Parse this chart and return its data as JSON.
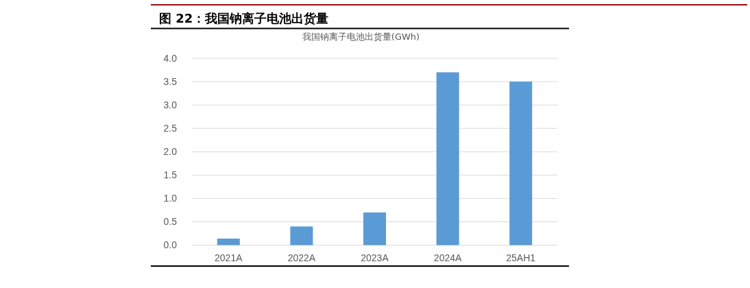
{
  "chart_data": {
    "type": "bar",
    "title": "图 22：我国钠离子电池出货量",
    "subtitle": "我国钠离子电池出货量(GWh)",
    "categories": [
      "2021A",
      "2022A",
      "2023A",
      "2024A",
      "25AH1"
    ],
    "values": [
      0.14,
      0.4,
      0.7,
      3.7,
      3.5
    ],
    "color": "#5b9bd5",
    "ylim": [
      0,
      4
    ],
    "yticks": [
      {
        "value": 0,
        "label": "0.0"
      },
      {
        "value": 0.5,
        "label": "0.5"
      },
      {
        "value": 1,
        "label": "1.0"
      },
      {
        "value": 1.5,
        "label": "1.5"
      },
      {
        "value": 2,
        "label": "2.0"
      },
      {
        "value": 2.5,
        "label": "2.5"
      },
      {
        "value": 3,
        "label": "3.0"
      },
      {
        "value": 3.5,
        "label": "3.5"
      },
      {
        "value": 4,
        "label": "4.0"
      }
    ],
    "grid": "y"
  }
}
